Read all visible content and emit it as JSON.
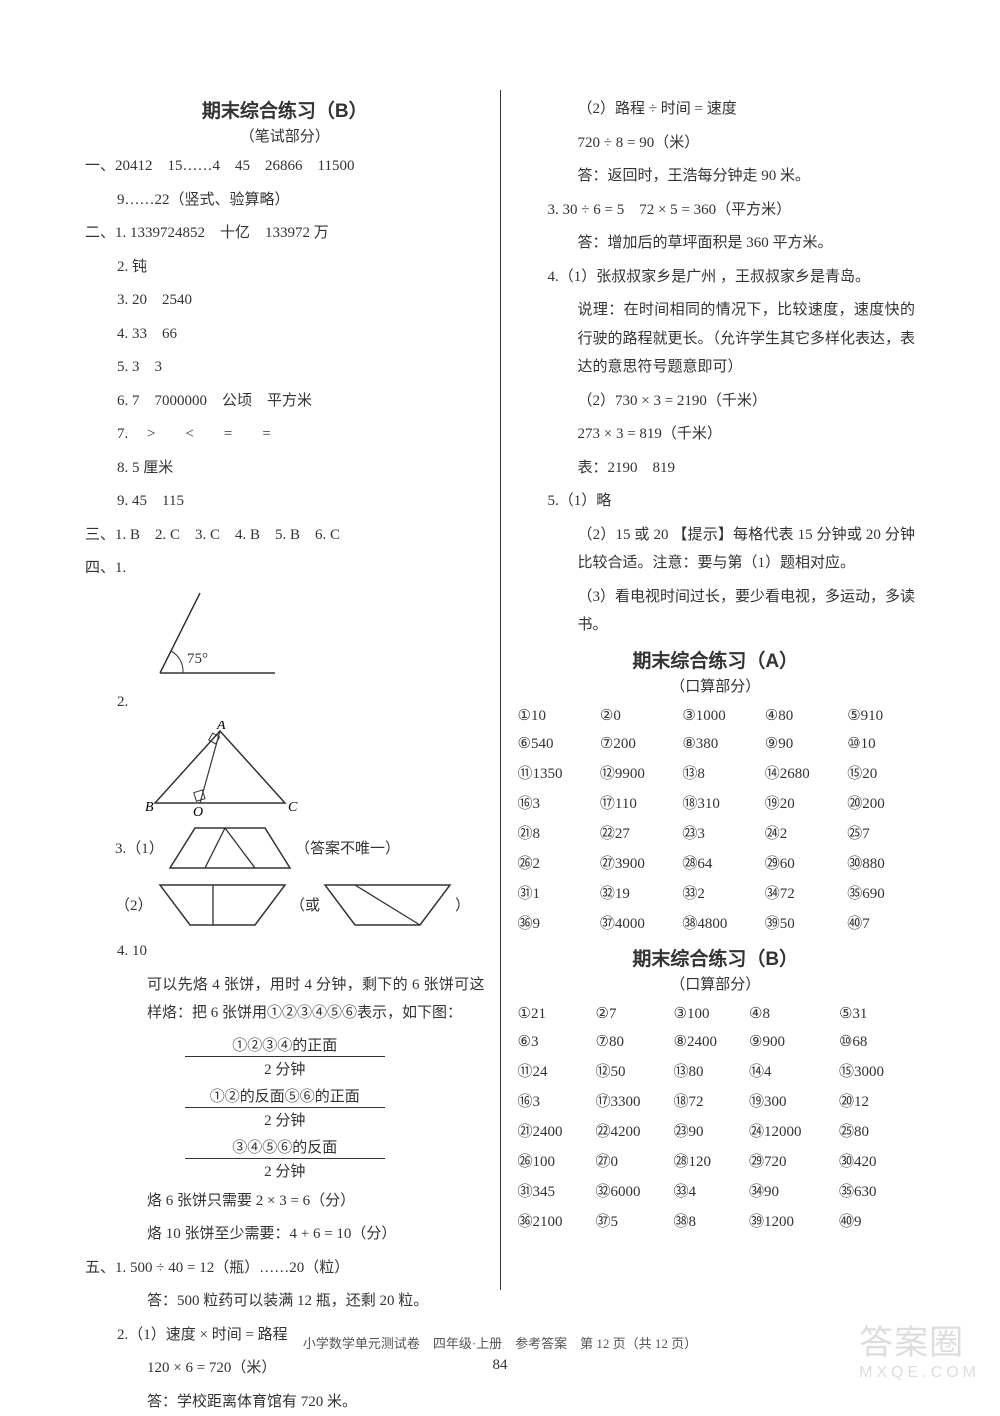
{
  "titleB": "期末综合练习（B）",
  "subtitleWritten": "（笔试部分）",
  "left": {
    "l1": "一、20412　15……4　45　26866　11500",
    "l1b": "9……22（竖式、验算略）",
    "l2": "二、1. 1339724852　十亿　133972 万",
    "l2_2": "2. 钝",
    "l2_3": "3. 20　2540",
    "l2_4": "4. 33　66",
    "l2_5": "5. 3　3",
    "l2_6": "6. 7　7000000　公顷　平方米",
    "l2_7": "7. 　>　　<　　=　　=",
    "l2_8": "8. 5 厘米",
    "l2_9": "9. 45　115",
    "l3": "三、1. B　2. C　3. C　4. B　5. B　6. C",
    "l4": "四、1.",
    "angle_label": "75°",
    "l4_2": "2.",
    "l4_3_1": "3.（1）",
    "l4_3_1_note": "（答案不唯一）",
    "l4_3_2": "（2）",
    "l4_3_2_mid": "（或",
    "l4_3_2_end": "）",
    "l4_4": "4. 10",
    "l4_4a": "可以先烙 4 张饼，用时 4 分钟，剩下的 6 张饼可这样烙：把 6 张饼用①②③④⑤⑥表示，如下图：",
    "step1t": "①②③④的正面",
    "step1b": "2 分钟",
    "step2t": "①②的反面⑤⑥的正面",
    "step2b": "2 分钟",
    "step3t": "③④⑤⑥的反面",
    "step3b": "2 分钟",
    "l4_4b": "烙 6 张饼只需要 2 × 3 = 6（分）",
    "l4_4c": "烙 10 张饼至少需要：4 + 6 = 10（分）",
    "l5_1": "五、1. 500 ÷ 40 = 12（瓶）……20（粒）",
    "l5_1a": "答：500 粒药可以装满 12 瓶，还剩 20 粒。",
    "l5_2": "2.（1）速度 × 时间 = 路程",
    "l5_2a": "120 × 6 = 720（米）",
    "l5_2b": "答：学校距离体育馆有 720 米。"
  },
  "right": {
    "r2_2": "（2）路程 ÷ 时间 = 速度",
    "r2_2a": "720 ÷ 8 = 90（米）",
    "r2_2b": "答：返回时，王浩每分钟走 90 米。",
    "r3": "3. 30 ÷ 6 = 5　72 × 5 = 360（平方米）",
    "r3a": "答：增加后的草坪面积是 360 平方米。",
    "r4": "4.（1）张叔叔家乡是广州 ，王叔叔家乡是青岛。",
    "r4a": "说理：在时间相同的情况下，比较速度，速度快的行驶的路程就更长。（允许学生其它多样化表达，表达的意思符号题意即可）",
    "r4b": "（2）730 × 3 = 2190（千米）",
    "r4c": "273 × 3 = 819（千米）",
    "r4d": "表：2190　819",
    "r5": "5.（1）略",
    "r5a": "（2）15 或 20 【提示】每格代表 15 分钟或 20 分钟比较合适。注意：要与第（1）题相对应。",
    "r5b": "（3）看电视时间过长，要少看电视，多运动，多读书。",
    "titleA": "期末综合练习（A）",
    "subtitleOral": "（口算部分）",
    "tableA": [
      [
        "①10",
        "②0",
        "③1000",
        "④80",
        "⑤910"
      ],
      [
        "⑥540",
        "⑦200",
        "⑧380",
        "⑨90",
        "⑩10"
      ],
      [
        "⑪1350",
        "⑫9900",
        "⑬8",
        "⑭2680",
        "⑮20"
      ],
      [
        "⑯3",
        "⑰110",
        "⑱310",
        "⑲20",
        "⑳200"
      ],
      [
        "㉑8",
        "㉒27",
        "㉓3",
        "㉔2",
        "㉕7"
      ],
      [
        "㉖2",
        "㉗3900",
        "㉘64",
        "㉙60",
        "㉚880"
      ],
      [
        "㉛1",
        "㉜19",
        "㉝2",
        "㉞72",
        "㉟690"
      ],
      [
        "㊱9",
        "㊲4000",
        "㊳4800",
        "㊴50",
        "㊵7"
      ]
    ],
    "titleB2": "期末综合练习（B）",
    "tableB": [
      [
        "①21",
        "②7",
        "③100",
        "④8",
        "⑤31"
      ],
      [
        "⑥3",
        "⑦80",
        "⑧2400",
        "⑨900",
        "⑩68"
      ],
      [
        "⑪24",
        "⑫50",
        "⑬80",
        "⑭4",
        "⑮3000"
      ],
      [
        "⑯3",
        "⑰3300",
        "⑱72",
        "⑲300",
        "⑳12"
      ],
      [
        "㉑2400",
        "㉒4200",
        "㉓90",
        "㉔12000",
        "㉕80"
      ],
      [
        "㉖100",
        "㉗0",
        "㉘120",
        "㉙720",
        "㉚420"
      ],
      [
        "㉛345",
        "㉜6000",
        "㉝4",
        "㉞90",
        "㉟630"
      ],
      [
        "㊱2100",
        "㊲5",
        "㊳8",
        "㊴1200",
        "㊵9"
      ]
    ]
  },
  "footer": "小学数学单元测试卷　四年级·上册　参考答案　第 12 页（共 12 页）",
  "pagenum": "84",
  "colors": {
    "text": "#333333",
    "border": "#333333",
    "bg": "#ffffff"
  }
}
